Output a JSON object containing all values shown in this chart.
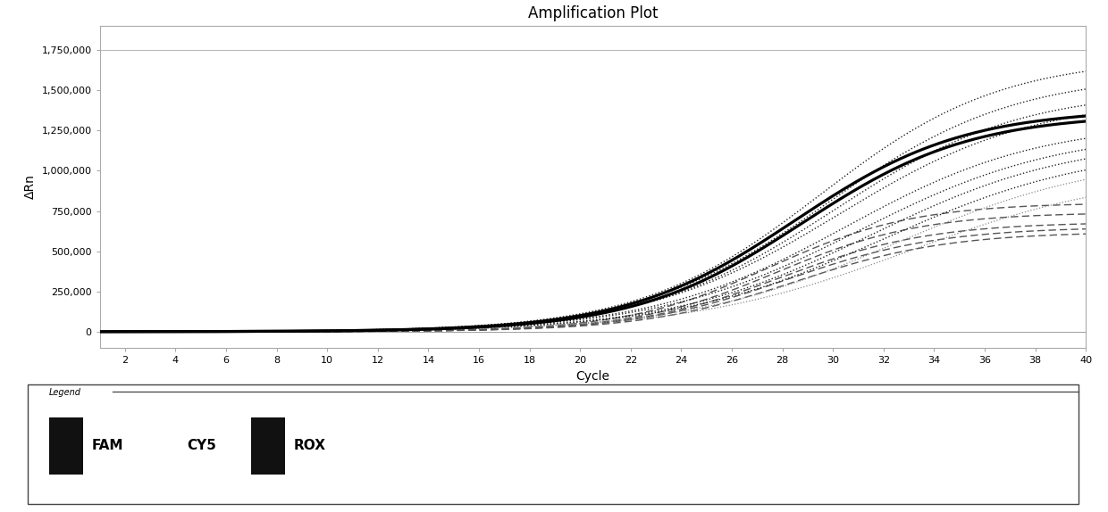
{
  "title": "Amplification Plot",
  "xlabel": "Cycle",
  "ylabel": "ΔRn",
  "xlim": [
    1,
    40
  ],
  "ylim": [
    -100000,
    1900000
  ],
  "yticks": [
    0,
    250000,
    500000,
    750000,
    1000000,
    1250000,
    1500000,
    1750000
  ],
  "ytick_labels": [
    "0",
    "250,000",
    "500,000",
    "750,000",
    "1,000,000",
    "1,250,000",
    "1,500,000",
    "1,750,000"
  ],
  "xticks": [
    2,
    4,
    6,
    8,
    10,
    12,
    14,
    16,
    18,
    20,
    22,
    24,
    26,
    28,
    30,
    32,
    34,
    36,
    38,
    40
  ],
  "background_color": "#ffffff",
  "plot_bg_color": "#ffffff",
  "title_fontsize": 12,
  "axis_fontsize": 10,
  "tick_fontsize": 8,
  "curves_solid_black": [
    [
      1380000,
      0.3,
      28.5,
      2000
    ],
    [
      1350000,
      0.3,
      28.8,
      2000
    ]
  ],
  "curves_dotted_dark": [
    [
      1700000,
      0.28,
      29.5,
      2000
    ],
    [
      1600000,
      0.27,
      29.8,
      2000
    ],
    [
      1500000,
      0.27,
      30.0,
      2000
    ],
    [
      1450000,
      0.26,
      30.2,
      2000
    ],
    [
      1300000,
      0.26,
      30.5,
      2000
    ],
    [
      1250000,
      0.25,
      31.0,
      2000
    ],
    [
      1200000,
      0.25,
      31.5,
      2000
    ],
    [
      1150000,
      0.24,
      32.0,
      2000
    ]
  ],
  "curves_dashed_mid": [
    [
      800000,
      0.35,
      27.5,
      2000
    ],
    [
      740000,
      0.35,
      27.8,
      2000
    ],
    [
      680000,
      0.34,
      28.0,
      2000
    ],
    [
      650000,
      0.33,
      28.2,
      2000
    ],
    [
      620000,
      0.33,
      28.5,
      2000
    ]
  ],
  "curves_dotted_light": [
    [
      1100000,
      0.24,
      32.5,
      2000
    ],
    [
      1000000,
      0.23,
      33.0,
      2000
    ]
  ]
}
